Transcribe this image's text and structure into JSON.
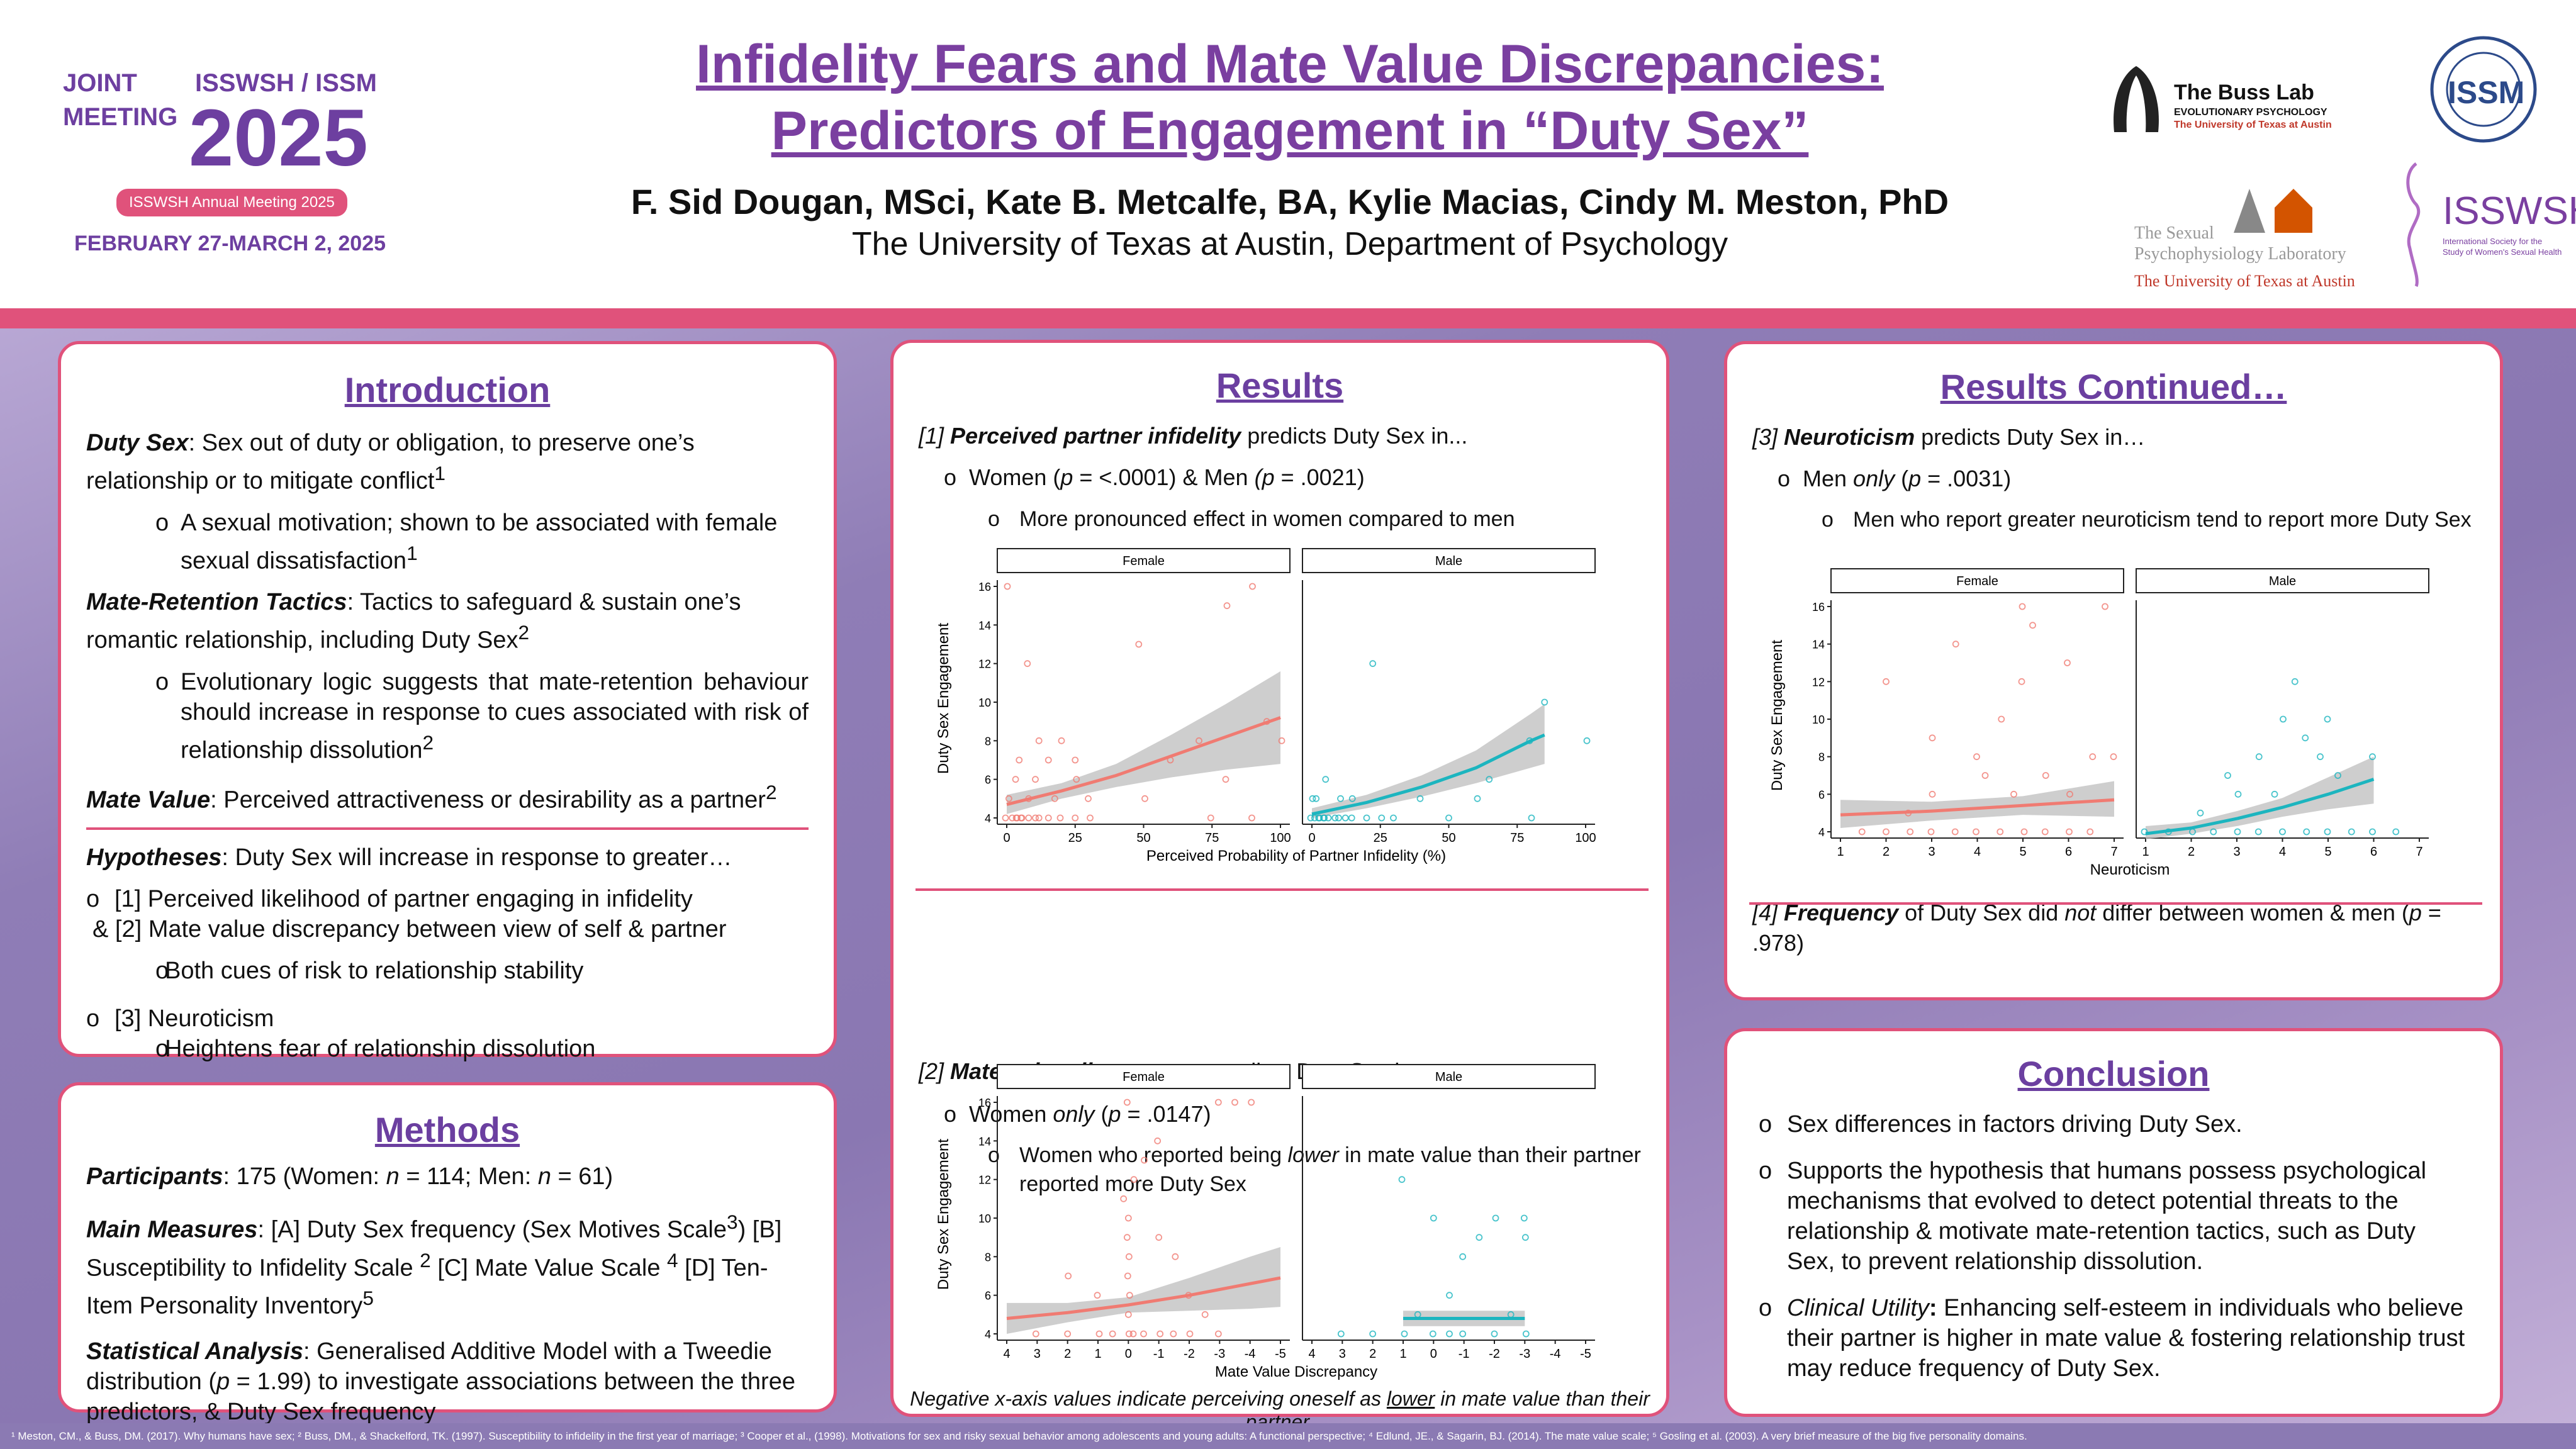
{
  "header": {
    "joint": "JOINT\nMEETING",
    "isswsh_issm": "ISSWSH / ISSM",
    "year": "2025",
    "annual": "ISSWSH Annual Meeting 2025",
    "dates": "FEBRUARY 27-MARCH 2, 2025",
    "title1": "Infidelity Fears and Mate Value Discrepancies:",
    "title2": "Predictors of Engagement in “Duty Sex”",
    "authors": "F. Sid Dougan, MSci, Kate B. Metcalfe, BA, Kylie Macias, Cindy M. Meston, PhD",
    "affiliation": "The University of Texas at Austin, Department of Psychology",
    "buss1": "The Buss Lab",
    "buss2": "EVOLUTIONARY PSYCHOLOGY",
    "buss3": "The University of Texas at Austin",
    "spl1": "The Sexual",
    "spl2": "Psychophysiology Laboratory",
    "spl3": "The University of Texas at Austin",
    "issm": "ISSM",
    "isswsh": "ISSWSH",
    "isswsh_sub": "International Society for the Study of Women's Sexual Health"
  },
  "intro": {
    "title": "Introduction",
    "duty_term": "Duty Sex",
    "duty_def": ": Sex out of duty or obligation, to preserve one’s relationship or to mitigate conflict",
    "duty_ref": "1",
    "duty_b1": "A sexual motivation; shown to be associated with female sexual dissatisfaction",
    "duty_b1_ref": "1",
    "mrt_term": "Mate-Retention Tactics",
    "mrt_def": ": Tactics to safeguard & sustain one’s romantic relationship, including Duty Sex",
    "mrt_ref": "2",
    "mrt_b1": "Evolutionary logic suggests that mate-retention behaviour should increase in response to cues associated with risk of relationship dissolution",
    "mrt_b1_ref": "2",
    "mv_term": "Mate Value",
    "mv_def": ": Perceived attractiveness or desirability as a partner",
    "mv_ref": "2",
    "hyp_term": "Hypotheses",
    "hyp_def": ": Duty Sex will increase in response to greater…",
    "h1": "[1] Perceived likelihood of partner engaging in infidelity",
    "h2": "& [2] Mate value discrepancy between view of self & partner",
    "h2b": "Both cues of risk to relationship stability",
    "h3": "[3] Neuroticism",
    "h3b": "Heightens fear of relationship dissolution"
  },
  "methods": {
    "title": "Methods",
    "part_term": "Participants",
    "part_a": ": 175 (Women: ",
    "n_women_label": "n",
    "part_b": " = 114; Men: ",
    "n_men_label": "n",
    "part_c": " = 61)",
    "mm_term": "Main Measures",
    "mm_a": ": [A] Duty Sex frequency (Sex Motives Scale",
    "mm_a_ref": "3",
    "mm_b": ") [B] Susceptibility to Infidelity Scale ",
    "mm_b_ref": "2",
    "mm_c": " [C] Mate Value Scale ",
    "mm_c_ref": "4",
    "mm_d": " [D] Ten-Item Personality Inventory",
    "mm_d_ref": "5",
    "sa_term": "Statistical Analysis",
    "sa_a": ": Generalised Additive Model with a Tweedie distribution (",
    "sa_p": "p",
    "sa_b": " = 1.99) to investigate associations between the three predictors, & Duty Sex frequency"
  },
  "results": {
    "title": "Results",
    "r1_num": "[1] ",
    "r1_term": "Perceived partner infidelity",
    "r1_rest": " predicts Duty Sex in...",
    "r1_b1a": "Women (",
    "r1_b1p": "p",
    "r1_b1b": " = <.0001) & Men ",
    "r1_b1c": "(p",
    "r1_b1d": " = .0021)",
    "r1_b2": "More pronounced effect in women compared to men",
    "r2_num": "[2] ",
    "r2_term": "Mate value discrepancy",
    "r2_rest": " predicts Duty Sex in…",
    "r2_b1a": "Women ",
    "r2_b1only": "only",
    "r2_b1b": " (",
    "r2_b1p": "p",
    "r2_b1c": " = .0147)",
    "r2_b2a": "Women who reported being ",
    "r2_b2low": "lower",
    "r2_b2b": " in mate value than their partner reported more Duty Sex",
    "note_a": "Negative x-axis values indicate perceiving oneself as ",
    "note_low": "lower",
    "note_b": " in mate value than their partner."
  },
  "results2": {
    "title": "Results Continued…",
    "r3_num": "[3] ",
    "r3_term": "Neuroticism",
    "r3_rest": " predicts Duty Sex in…",
    "r3_b1a": "Men ",
    "r3_b1only": "only",
    "r3_b1b": " (",
    "r3_b1p": "p",
    "r3_b1c": " = .0031)",
    "r3_b2": "Men who report greater neuroticism tend to report more Duty Sex",
    "r4_num": "[4] ",
    "r4_term": "Frequency",
    "r4_a": " of Duty Sex did ",
    "r4_not": "not",
    "r4_b": " differ between women & men (",
    "r4_p": "p",
    "r4_c": " = .978)"
  },
  "conclusion": {
    "title": "Conclusion",
    "c1": "Sex differences in factors driving Duty Sex.",
    "c2": "Supports the hypothesis that humans possess psychological mechanisms that evolved to detect potential threats to the relationship & motivate mate-retention tactics, such as Duty Sex, to prevent relationship dissolution.",
    "c3_term": "Clinical Utility",
    "c3": ": Enhancing self-esteem in individuals who believe their partner is higher in mate value & fostering relationship trust may reduce frequency of Duty Sex."
  },
  "footer": "¹ Meston, CM., & Buss, DM. (2017). Why humans have sex; ² Buss, DM., & Shackelford, TK. (1997). Susceptibility to infidelity in the first year of marriage; ³ Cooper et al., (1998). Motivations for sex and risky sexual behavior among adolescents and young adults: A functional perspective; ⁴ Edlund, JE., & Sagarin, BJ. (2014). The mate value scale; ⁵ Gosling et al. (2003). A very brief measure of the big five personality domains.",
  "colors": {
    "female": "#f07b72",
    "male": "#1cb5bf",
    "band": "#bdbdbd",
    "accent": "#e0527b",
    "heading": "#6b3fa0"
  },
  "chart_data": [
    {
      "type": "scatter",
      "facets": [
        "Female",
        "Male"
      ],
      "xlabel": "Perceived Probability of Partner Infidelity (%)",
      "ylabel": "Duty Sex Engagement",
      "xlim": [
        0,
        100
      ],
      "ylim": [
        4,
        16
      ],
      "xticks": [
        "0",
        "25",
        "50",
        "75",
        "100"
      ],
      "yticks": [
        "4",
        "6",
        "8",
        "10",
        "12",
        "14",
        "16"
      ],
      "female_points": [
        [
          0,
          4
        ],
        [
          2,
          4
        ],
        [
          3,
          4
        ],
        [
          4,
          4
        ],
        [
          5,
          4
        ],
        [
          6,
          4
        ],
        [
          8,
          4
        ],
        [
          10,
          4
        ],
        [
          12,
          4
        ],
        [
          15,
          4
        ],
        [
          20,
          4
        ],
        [
          25,
          4
        ],
        [
          30,
          4
        ],
        [
          1,
          5
        ],
        [
          3,
          6
        ],
        [
          5,
          7
        ],
        [
          8,
          5
        ],
        [
          10,
          6
        ],
        [
          12,
          8
        ],
        [
          15,
          7
        ],
        [
          18,
          5
        ],
        [
          20,
          8
        ],
        [
          25,
          6
        ],
        [
          30,
          5
        ],
        [
          0,
          16
        ],
        [
          8,
          12
        ],
        [
          25,
          7
        ],
        [
          50,
          5
        ],
        [
          60,
          7
        ],
        [
          70,
          8
        ],
        [
          75,
          4
        ],
        [
          80,
          6
        ],
        [
          80,
          15
        ],
        [
          90,
          16
        ],
        [
          48,
          13
        ],
        [
          90,
          4
        ],
        [
          95,
          9
        ],
        [
          100,
          8
        ]
      ],
      "female_fit": [
        [
          0,
          4.7
        ],
        [
          20,
          5.4
        ],
        [
          40,
          6.2
        ],
        [
          60,
          7.2
        ],
        [
          80,
          8.2
        ],
        [
          100,
          9.2
        ]
      ],
      "female_band": [
        [
          0,
          4.2,
          5.2
        ],
        [
          20,
          5.0,
          5.8
        ],
        [
          40,
          5.6,
          6.8
        ],
        [
          60,
          6.1,
          8.3
        ],
        [
          80,
          6.5,
          9.9
        ],
        [
          100,
          6.8,
          11.6
        ]
      ],
      "male_points": [
        [
          0,
          4
        ],
        [
          1,
          4
        ],
        [
          2,
          4
        ],
        [
          3,
          4
        ],
        [
          4,
          4
        ],
        [
          5,
          4
        ],
        [
          6,
          4
        ],
        [
          8,
          4
        ],
        [
          10,
          4
        ],
        [
          12,
          4
        ],
        [
          15,
          4
        ],
        [
          20,
          4
        ],
        [
          25,
          4
        ],
        [
          30,
          4
        ],
        [
          0,
          5
        ],
        [
          2,
          5
        ],
        [
          5,
          6
        ],
        [
          10,
          5
        ],
        [
          15,
          5
        ],
        [
          22,
          12
        ],
        [
          40,
          5
        ],
        [
          50,
          4
        ],
        [
          60,
          5
        ],
        [
          65,
          6
        ],
        [
          80,
          4
        ],
        [
          80,
          8
        ],
        [
          85,
          10
        ],
        [
          100,
          8
        ]
      ],
      "male_fit": [
        [
          0,
          4.2
        ],
        [
          20,
          4.8
        ],
        [
          40,
          5.6
        ],
        [
          60,
          6.6
        ],
        [
          80,
          8.0
        ],
        [
          85,
          8.3
        ]
      ],
      "male_band": [
        [
          0,
          4.0,
          4.5
        ],
        [
          20,
          4.5,
          5.2
        ],
        [
          40,
          5.1,
          6.2
        ],
        [
          60,
          5.8,
          7.5
        ],
        [
          80,
          6.6,
          9.4
        ],
        [
          85,
          6.8,
          9.9
        ]
      ]
    },
    {
      "type": "scatter",
      "facets": [
        "Female",
        "Male"
      ],
      "xlabel": "Mate Value Discrepancy",
      "ylabel": "Duty Sex Engagement",
      "xlim": [
        4,
        -5
      ],
      "ylim": [
        4,
        16
      ],
      "xticks": [
        "4",
        "3",
        "2",
        "1",
        "0",
        "-1",
        "-2",
        "-3",
        "-4",
        "-5"
      ],
      "yticks": [
        "4",
        "6",
        "8",
        "10",
        "12",
        "14",
        "16"
      ],
      "female_points": [
        [
          3,
          4
        ],
        [
          2,
          4
        ],
        [
          1,
          4
        ],
        [
          0.5,
          4
        ],
        [
          0,
          4
        ],
        [
          -0.2,
          4
        ],
        [
          -0.5,
          4
        ],
        [
          -1,
          4
        ],
        [
          -1.5,
          4
        ],
        [
          -2,
          4
        ],
        [
          -3,
          4
        ],
        [
          0,
          5
        ],
        [
          0,
          6
        ],
        [
          0,
          7
        ],
        [
          0,
          8
        ],
        [
          0,
          9
        ],
        [
          0,
          10
        ],
        [
          0.2,
          11
        ],
        [
          -0.2,
          12
        ],
        [
          -0.5,
          13
        ],
        [
          0,
          16
        ],
        [
          -1,
          9
        ],
        [
          -1.5,
          8
        ],
        [
          -2,
          6
        ],
        [
          -2.5,
          5
        ],
        [
          -3,
          16
        ],
        [
          -3.5,
          16
        ],
        [
          -4,
          16
        ],
        [
          1,
          6
        ],
        [
          2,
          7
        ],
        [
          -1,
          14
        ]
      ],
      "female_fit": [
        [
          4,
          4.8
        ],
        [
          2,
          5.1
        ],
        [
          0,
          5.5
        ],
        [
          -2,
          6.0
        ],
        [
          -4,
          6.6
        ],
        [
          -5,
          6.9
        ]
      ],
      "female_band": [
        [
          4,
          4.0,
          5.6
        ],
        [
          2,
          4.6,
          5.6
        ],
        [
          0,
          5.1,
          5.9
        ],
        [
          -2,
          5.2,
          6.9
        ],
        [
          -4,
          5.3,
          8.0
        ],
        [
          -5,
          5.4,
          8.5
        ]
      ],
      "male_points": [
        [
          3,
          4
        ],
        [
          2,
          4
        ],
        [
          1,
          4
        ],
        [
          0,
          4
        ],
        [
          -0.5,
          4
        ],
        [
          -1,
          4
        ],
        [
          -2,
          4
        ],
        [
          -3,
          4
        ],
        [
          0.5,
          5
        ],
        [
          -0.5,
          6
        ],
        [
          -1,
          8
        ],
        [
          -1.5,
          9
        ],
        [
          -2,
          10
        ],
        [
          -3,
          10
        ],
        [
          -3,
          9
        ],
        [
          1,
          12
        ],
        [
          0,
          10
        ],
        [
          -2.5,
          5
        ]
      ],
      "male_fit": [
        [
          1,
          4.8
        ],
        [
          0,
          4.8
        ],
        [
          -1,
          4.8
        ],
        [
          -2,
          4.8
        ],
        [
          -3,
          4.8
        ]
      ],
      "male_band": [
        [
          1,
          4.4,
          5.2
        ],
        [
          -1,
          4.4,
          5.2
        ],
        [
          -3,
          4.4,
          5.2
        ]
      ]
    },
    {
      "type": "scatter",
      "facets": [
        "Female",
        "Male"
      ],
      "xlabel": "Neuroticism",
      "ylabel": "Duty Sex Engagement",
      "xlim": [
        1,
        7
      ],
      "ylim": [
        4,
        16
      ],
      "xticks": [
        "1",
        "2",
        "3",
        "4",
        "5",
        "6",
        "7"
      ],
      "yticks": [
        "4",
        "6",
        "8",
        "10",
        "12",
        "14",
        "16"
      ],
      "female_points": [
        [
          1.5,
          4
        ],
        [
          2,
          4
        ],
        [
          2.5,
          4
        ],
        [
          3,
          4
        ],
        [
          3.5,
          4
        ],
        [
          4,
          4
        ],
        [
          4.5,
          4
        ],
        [
          5,
          4
        ],
        [
          5.5,
          4
        ],
        [
          6,
          4
        ],
        [
          6.5,
          4
        ],
        [
          2,
          12
        ],
        [
          3.5,
          14
        ],
        [
          5,
          16
        ],
        [
          5.2,
          15
        ],
        [
          6,
          13
        ],
        [
          6.8,
          16
        ],
        [
          4.5,
          10
        ],
        [
          4,
          8
        ],
        [
          3,
          9
        ],
        [
          5,
          12
        ],
        [
          5.5,
          7
        ],
        [
          6,
          6
        ],
        [
          2.5,
          5
        ],
        [
          3,
          6
        ],
        [
          4.2,
          7
        ],
        [
          4.8,
          6
        ],
        [
          6.5,
          8
        ],
        [
          7,
          8
        ]
      ],
      "female_fit": [
        [
          1,
          4.9
        ],
        [
          3,
          5.1
        ],
        [
          5,
          5.4
        ],
        [
          7,
          5.7
        ]
      ],
      "female_band": [
        [
          1,
          4.2,
          5.7
        ],
        [
          3,
          4.6,
          5.6
        ],
        [
          5,
          4.9,
          5.9
        ],
        [
          7,
          4.8,
          6.7
        ]
      ],
      "male_points": [
        [
          1,
          4
        ],
        [
          1.5,
          4
        ],
        [
          2,
          4
        ],
        [
          2.5,
          4
        ],
        [
          3,
          4
        ],
        [
          3.5,
          4
        ],
        [
          4,
          4
        ],
        [
          4.5,
          4
        ],
        [
          5,
          4
        ],
        [
          5.5,
          4
        ],
        [
          6,
          4
        ],
        [
          2.2,
          5
        ],
        [
          3,
          6
        ],
        [
          3.5,
          8
        ],
        [
          4,
          10
        ],
        [
          4.3,
          12
        ],
        [
          4.5,
          9
        ],
        [
          4.8,
          8
        ],
        [
          5,
          10
        ],
        [
          5.2,
          7
        ],
        [
          6,
          8
        ],
        [
          2.8,
          7
        ],
        [
          3.8,
          6
        ],
        [
          6.5,
          4
        ]
      ],
      "male_fit": [
        [
          1,
          3.9
        ],
        [
          2,
          4.2
        ],
        [
          3,
          4.7
        ],
        [
          4,
          5.3
        ],
        [
          5,
          6.0
        ],
        [
          6,
          6.8
        ]
      ],
      "male_band": [
        [
          1,
          3.6,
          4.3
        ],
        [
          2,
          3.9,
          4.5
        ],
        [
          3,
          4.3,
          5.1
        ],
        [
          4,
          4.8,
          5.8
        ],
        [
          5,
          5.2,
          6.9
        ],
        [
          6,
          5.5,
          8.0
        ]
      ]
    }
  ]
}
